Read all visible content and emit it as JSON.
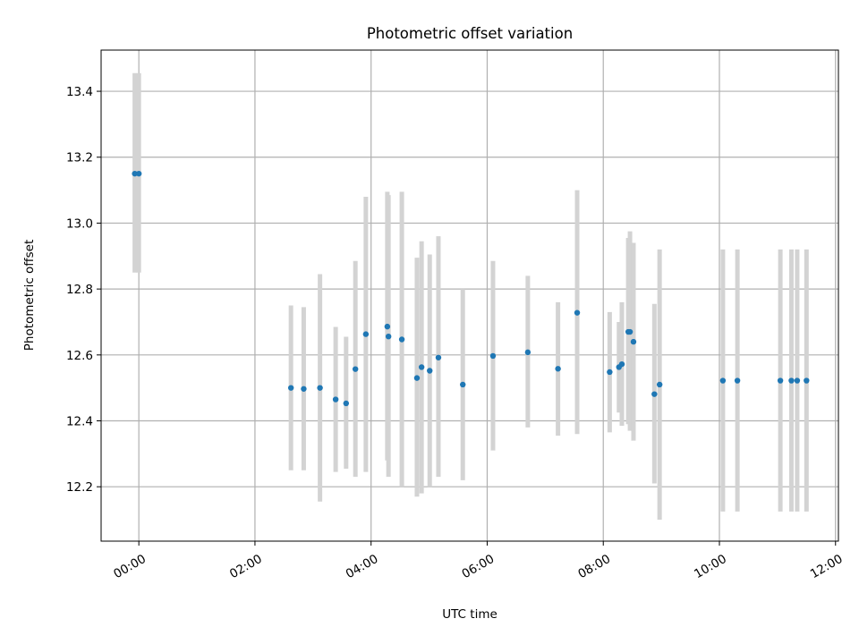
{
  "chart_data": {
    "type": "scatter",
    "title": "Photometric offset variation",
    "xlabel": "UTC time",
    "ylabel": "Photometric offset",
    "x_unit": "hours (UTC)",
    "xlim": [
      -0.65,
      12.05
    ],
    "ylim": [
      12.035,
      13.525
    ],
    "xticks": [
      {
        "value": 0,
        "label": "00:00"
      },
      {
        "value": 2,
        "label": "02:00"
      },
      {
        "value": 4,
        "label": "04:00"
      },
      {
        "value": 6,
        "label": "06:00"
      },
      {
        "value": 8,
        "label": "08:00"
      },
      {
        "value": 10,
        "label": "10:00"
      },
      {
        "value": 12,
        "label": "12:00"
      }
    ],
    "yticks": [
      {
        "value": 12.2,
        "label": "12.2"
      },
      {
        "value": 12.4,
        "label": "12.4"
      },
      {
        "value": 12.6,
        "label": "12.6"
      },
      {
        "value": 12.8,
        "label": "12.8"
      },
      {
        "value": 13.0,
        "label": "13.0"
      },
      {
        "value": 13.2,
        "label": "13.2"
      },
      {
        "value": 13.4,
        "label": "13.4"
      }
    ],
    "grid": true,
    "colors": {
      "point": "#1f77b4",
      "errorbar": "#d3d3d3",
      "grid": "#b0b0b0"
    },
    "points": [
      {
        "x": -0.07,
        "y": 13.15,
        "ylow": 12.85,
        "yhigh": 13.455
      },
      {
        "x": 0.0,
        "y": 13.15,
        "ylow": 12.85,
        "yhigh": 13.455
      },
      {
        "x": 2.62,
        "y": 12.5,
        "ylow": 12.25,
        "yhigh": 12.75
      },
      {
        "x": 2.84,
        "y": 12.497,
        "ylow": 12.25,
        "yhigh": 12.745
      },
      {
        "x": 3.12,
        "y": 12.5,
        "ylow": 12.155,
        "yhigh": 12.845
      },
      {
        "x": 3.39,
        "y": 12.465,
        "ylow": 12.245,
        "yhigh": 12.685
      },
      {
        "x": 3.57,
        "y": 12.453,
        "ylow": 12.255,
        "yhigh": 12.655
      },
      {
        "x": 3.73,
        "y": 12.557,
        "ylow": 12.23,
        "yhigh": 12.885
      },
      {
        "x": 3.91,
        "y": 12.663,
        "ylow": 12.245,
        "yhigh": 13.08
      },
      {
        "x": 4.28,
        "y": 12.686,
        "ylow": 12.28,
        "yhigh": 13.095
      },
      {
        "x": 4.3,
        "y": 12.656,
        "ylow": 12.23,
        "yhigh": 13.085
      },
      {
        "x": 4.53,
        "y": 12.647,
        "ylow": 12.2,
        "yhigh": 13.095
      },
      {
        "x": 4.79,
        "y": 12.53,
        "ylow": 12.17,
        "yhigh": 12.895
      },
      {
        "x": 4.87,
        "y": 12.563,
        "ylow": 12.18,
        "yhigh": 12.945
      },
      {
        "x": 5.01,
        "y": 12.552,
        "ylow": 12.2,
        "yhigh": 12.905
      },
      {
        "x": 5.16,
        "y": 12.592,
        "ylow": 12.23,
        "yhigh": 12.96
      },
      {
        "x": 5.58,
        "y": 12.51,
        "ylow": 12.22,
        "yhigh": 12.8
      },
      {
        "x": 6.1,
        "y": 12.597,
        "ylow": 12.31,
        "yhigh": 12.885
      },
      {
        "x": 6.7,
        "y": 12.608,
        "ylow": 12.38,
        "yhigh": 12.84
      },
      {
        "x": 7.22,
        "y": 12.558,
        "ylow": 12.355,
        "yhigh": 12.76
      },
      {
        "x": 7.55,
        "y": 12.728,
        "ylow": 12.36,
        "yhigh": 13.1
      },
      {
        "x": 8.11,
        "y": 12.548,
        "ylow": 12.365,
        "yhigh": 12.73
      },
      {
        "x": 8.27,
        "y": 12.563,
        "ylow": 12.425,
        "yhigh": 12.7
      },
      {
        "x": 8.32,
        "y": 12.572,
        "ylow": 12.385,
        "yhigh": 12.76
      },
      {
        "x": 8.43,
        "y": 12.67,
        "ylow": 12.39,
        "yhigh": 12.955
      },
      {
        "x": 8.46,
        "y": 12.67,
        "ylow": 12.37,
        "yhigh": 12.975
      },
      {
        "x": 8.52,
        "y": 12.64,
        "ylow": 12.34,
        "yhigh": 12.94
      },
      {
        "x": 8.88,
        "y": 12.481,
        "ylow": 12.21,
        "yhigh": 12.755
      },
      {
        "x": 8.97,
        "y": 12.51,
        "ylow": 12.1,
        "yhigh": 12.92
      },
      {
        "x": 10.06,
        "y": 12.522,
        "ylow": 12.125,
        "yhigh": 12.92
      },
      {
        "x": 10.31,
        "y": 12.522,
        "ylow": 12.125,
        "yhigh": 12.92
      },
      {
        "x": 11.05,
        "y": 12.522,
        "ylow": 12.125,
        "yhigh": 12.92
      },
      {
        "x": 11.24,
        "y": 12.522,
        "ylow": 12.125,
        "yhigh": 12.92
      },
      {
        "x": 11.34,
        "y": 12.522,
        "ylow": 12.125,
        "yhigh": 12.92
      },
      {
        "x": 11.5,
        "y": 12.522,
        "ylow": 12.125,
        "yhigh": 12.92
      }
    ]
  }
}
